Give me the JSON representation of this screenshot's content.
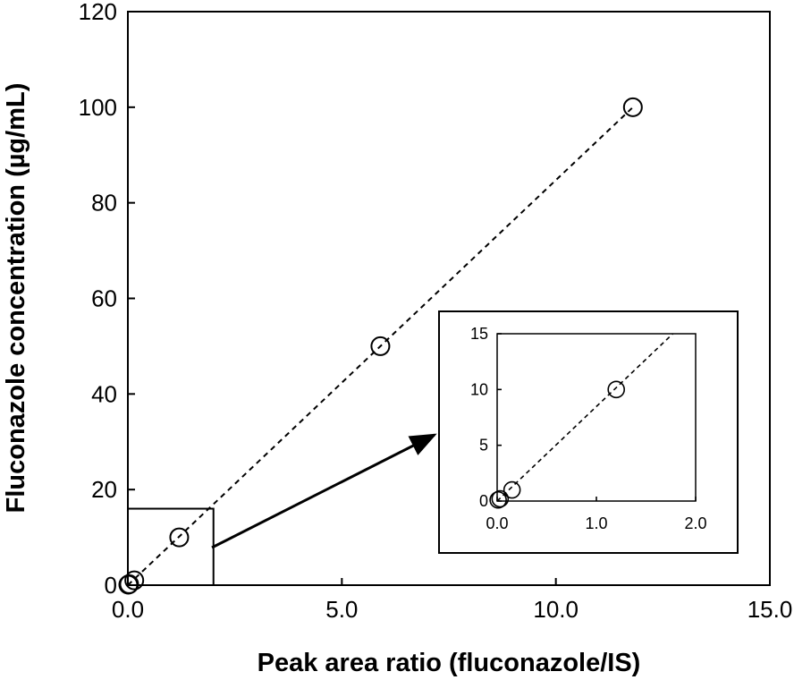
{
  "chart_data": [
    {
      "id": "main",
      "type": "scatter",
      "title": "",
      "xlabel": "Peak area ratio (fluconazole/IS)",
      "ylabel": "Fluconazole concentration (µg/mL)",
      "xlim": [
        0,
        15
      ],
      "ylim": [
        0,
        120
      ],
      "x_ticks": [
        "0.0",
        "5.0",
        "10.0",
        "15.0"
      ],
      "y_ticks": [
        "0",
        "20",
        "40",
        "60",
        "80",
        "100",
        "120"
      ],
      "series": [
        {
          "marker": "open-circle",
          "x": [
            0.01,
            0.03,
            0.15,
            1.2,
            5.9,
            11.8
          ],
          "y": [
            0.1,
            0.2,
            1,
            10,
            50,
            100
          ]
        }
      ],
      "fit_line": {
        "style": "dashed",
        "x": [
          0,
          11.8
        ],
        "y": [
          0,
          100
        ]
      },
      "zoom_box": {
        "x": [
          0,
          2.0
        ],
        "y": [
          0,
          16
        ]
      },
      "grid": false,
      "legend": "none"
    },
    {
      "id": "inset",
      "type": "scatter",
      "xlim": [
        0,
        2.0
      ],
      "ylim": [
        0,
        15
      ],
      "x_ticks": [
        "0.0",
        "1.0",
        "2.0"
      ],
      "y_ticks": [
        "0",
        "5",
        "10",
        "15"
      ],
      "series": [
        {
          "marker": "open-circle",
          "x": [
            0.01,
            0.03,
            0.15,
            1.2
          ],
          "y": [
            0.1,
            0.2,
            1,
            10
          ]
        }
      ],
      "fit_line": {
        "style": "dashed",
        "x": [
          0,
          1.77
        ],
        "y": [
          0,
          15
        ]
      },
      "grid": false,
      "legend": "none"
    }
  ]
}
